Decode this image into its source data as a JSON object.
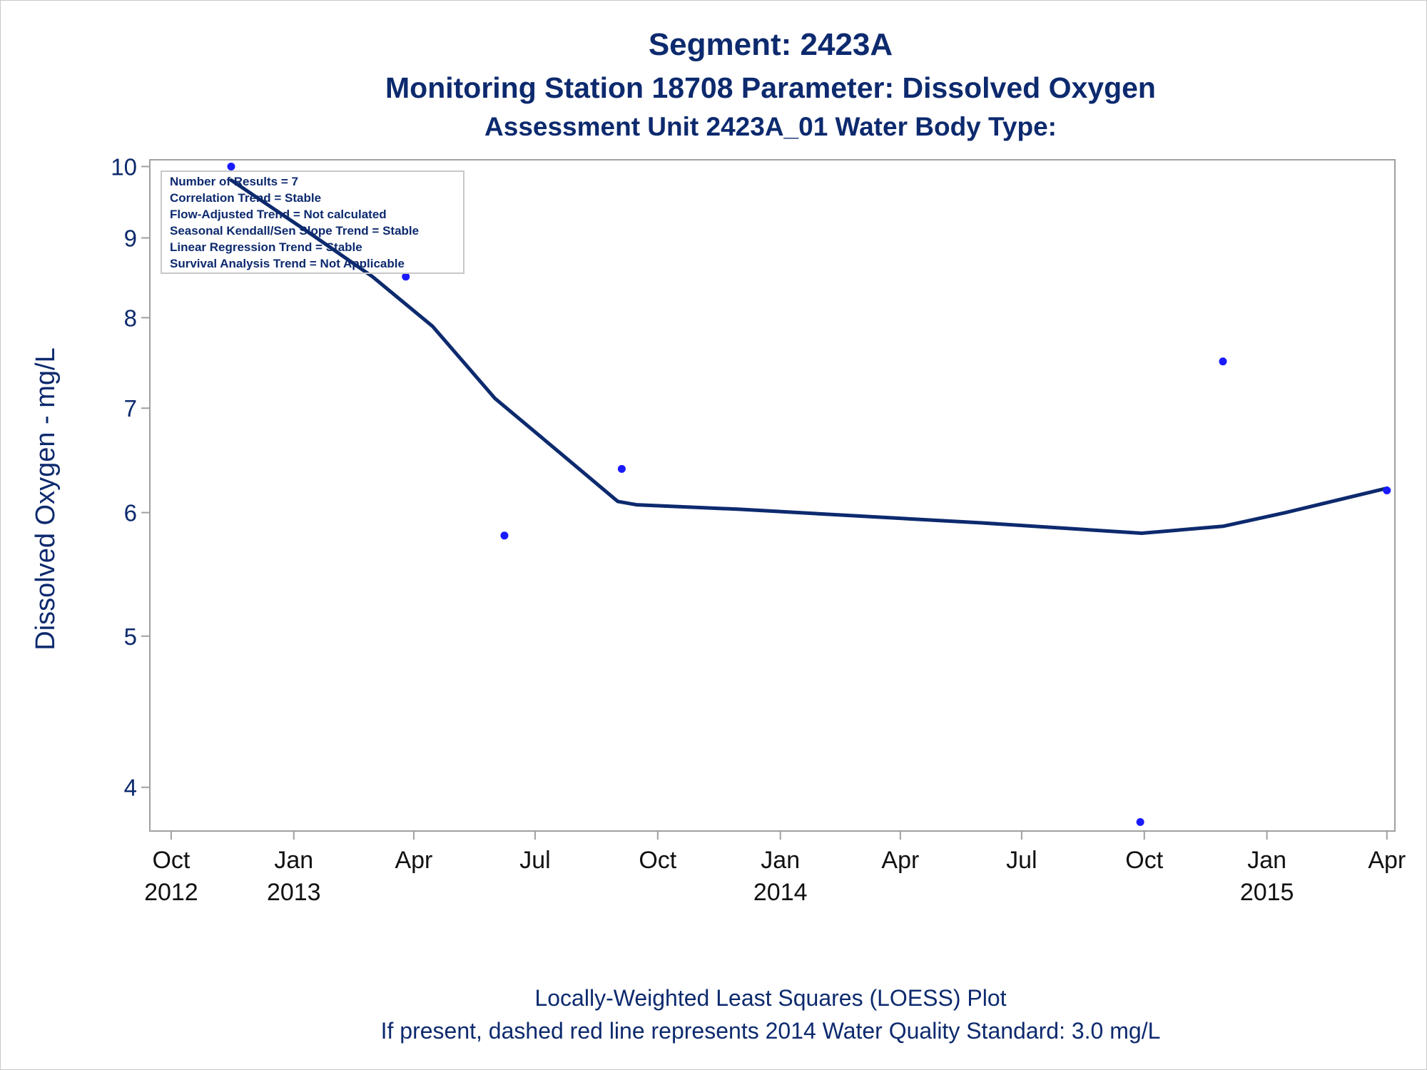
{
  "colors": {
    "text": "#0d2a6e",
    "line": "#0d2a6e",
    "points": "#1a1aff",
    "frame": "#a0a0a0",
    "axis_labels": "#0d2a6e"
  },
  "titles": {
    "line1": "Segment: 2423A",
    "line2": "Monitoring Station 18708 Parameter: Dissolved Oxygen",
    "line3": "Assessment Unit 2423A_01    Water Body Type:"
  },
  "info_box": [
    "Number of Results = 7",
    "Correlation Trend = Stable",
    "Flow-Adjusted Trend = Not calculated",
    "Seasonal Kendall/Sen Slope Trend = Stable",
    "Linear Regression Trend = Stable",
    "Survival Analysis Trend = Not Applicable"
  ],
  "footnotes": {
    "line1": "Locally-Weighted Least Squares (LOESS) Plot",
    "line2": "If present, dashed red line represents 2014 Water Quality Standard: 3.0 mg/L"
  },
  "chart_data": {
    "type": "scatter",
    "ylabel": "Dissolved Oxygen - mg/L",
    "xlabel": "",
    "y_scale": "log",
    "ylim": [
      3.75,
      10.1
    ],
    "xlim": [
      "2012-09-15",
      "2015-04-07"
    ],
    "y_ticks": [
      4,
      5,
      6,
      7,
      8,
      9,
      10
    ],
    "x_ticks": [
      {
        "date": "2012-10-01",
        "label": "Oct",
        "year": "2012"
      },
      {
        "date": "2013-01-01",
        "label": "Jan",
        "year": "2013"
      },
      {
        "date": "2013-04-01",
        "label": "Apr",
        "year": ""
      },
      {
        "date": "2013-07-01",
        "label": "Jul",
        "year": ""
      },
      {
        "date": "2013-10-01",
        "label": "Oct",
        "year": ""
      },
      {
        "date": "2014-01-01",
        "label": "Jan",
        "year": "2014"
      },
      {
        "date": "2014-04-01",
        "label": "Apr",
        "year": ""
      },
      {
        "date": "2014-07-01",
        "label": "Jul",
        "year": ""
      },
      {
        "date": "2014-10-01",
        "label": "Oct",
        "year": ""
      },
      {
        "date": "2015-01-01",
        "label": "Jan",
        "year": "2015"
      },
      {
        "date": "2015-04-01",
        "label": "Apr",
        "year": ""
      }
    ],
    "grid": false,
    "series": [
      {
        "kind": "points",
        "x": [
          "2012-11-15",
          "2013-03-26",
          "2013-06-08",
          "2013-09-04",
          "2014-09-28",
          "2014-11-29",
          "2015-04-01"
        ],
        "y": [
          10.0,
          8.5,
          5.8,
          6.4,
          3.8,
          7.5,
          6.2
        ]
      },
      {
        "kind": "loess",
        "x": [
          "2012-11-15",
          "2013-01-10",
          "2013-03-01",
          "2013-04-15",
          "2013-06-01",
          "2013-07-20",
          "2013-09-01",
          "2013-09-15",
          "2013-12-01",
          "2014-03-01",
          "2014-06-01",
          "2014-09-29",
          "2014-11-29",
          "2015-01-15",
          "2015-04-01"
        ],
        "y": [
          9.8,
          9.1,
          8.5,
          7.9,
          7.1,
          6.55,
          6.1,
          6.07,
          6.03,
          5.97,
          5.91,
          5.82,
          5.88,
          6.0,
          6.22
        ]
      }
    ]
  }
}
